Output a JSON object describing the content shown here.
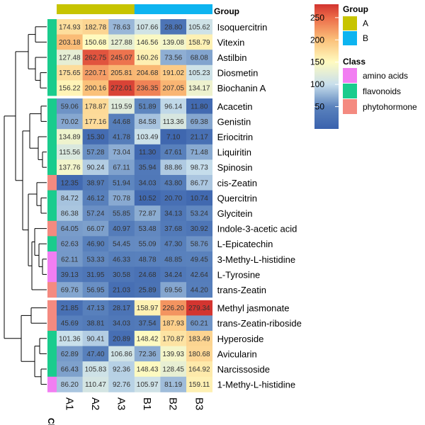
{
  "chart_data": {
    "type": "heatmap",
    "columns": [
      "A1",
      "A2",
      "A3",
      "B1",
      "B2",
      "B3"
    ],
    "column_groups": [
      "A",
      "A",
      "A",
      "B",
      "B",
      "B"
    ],
    "rows": [
      {
        "name": "Isoquercitrin",
        "class": "flavonoids",
        "values": [
          "174.93",
          "182.78",
          "78.63",
          "107.66",
          "28.80",
          "105.62"
        ]
      },
      {
        "name": "Vitexin",
        "class": "flavonoids",
        "values": [
          "203.18",
          "150.68",
          "127.88",
          "146.56",
          "139.08",
          "158.79"
        ]
      },
      {
        "name": "Astilbin",
        "class": "flavonoids",
        "values": [
          "127.48",
          "262.75",
          "245.07",
          "160.26",
          "73.56",
          "68.08"
        ]
      },
      {
        "name": "Diosmetin",
        "class": "flavonoids",
        "values": [
          "175.65",
          "220.71",
          "205.81",
          "204.68",
          "191.02",
          "105.23"
        ]
      },
      {
        "name": "Biochanin A",
        "class": "flavonoids",
        "values": [
          "156.22",
          "200.16",
          "272.01",
          "236.35",
          "207.05",
          "134.17"
        ]
      },
      {
        "name": "Acacetin",
        "class": "flavonoids",
        "values": [
          "59.06",
          "178.87",
          "119.59",
          "51.89",
          "96.14",
          "11.80"
        ]
      },
      {
        "name": "Genistin",
        "class": "flavonoids",
        "values": [
          "70.02",
          "177.16",
          "44.68",
          "84.58",
          "113.36",
          "69.38"
        ]
      },
      {
        "name": "Eriocitrin",
        "class": "flavonoids",
        "values": [
          "134.89",
          "15.30",
          "41.78",
          "103.49",
          "7.10",
          "21.17"
        ]
      },
      {
        "name": "Liquiritin",
        "class": "flavonoids",
        "values": [
          "115.56",
          "57.28",
          "73.04",
          "11.30",
          "47.61",
          "71.48"
        ]
      },
      {
        "name": "Spinosin",
        "class": "flavonoids",
        "values": [
          "137.76",
          "90.24",
          "67.11",
          "35.94",
          "88.86",
          "98.73"
        ]
      },
      {
        "name": "cis-Zeatin",
        "class": "phytohormone",
        "values": [
          "12.35",
          "38.97",
          "51.94",
          "34.03",
          "43.80",
          "86.77"
        ]
      },
      {
        "name": "Quercitrin",
        "class": "flavonoids",
        "values": [
          "84.72",
          "46.12",
          "70.78",
          "10.52",
          "20.70",
          "10.74"
        ]
      },
      {
        "name": "Glycitein",
        "class": "flavonoids",
        "values": [
          "86.38",
          "57.24",
          "55.85",
          "72.87",
          "34.13",
          "53.24"
        ]
      },
      {
        "name": "Indole-3-acetic acid",
        "class": "phytohormone",
        "values": [
          "64.05",
          "66.07",
          "40.97",
          "53.48",
          "37.68",
          "30.92"
        ]
      },
      {
        "name": "L-Epicatechin",
        "class": "flavonoids",
        "values": [
          "62.63",
          "46.90",
          "54.45",
          "55.09",
          "47.30",
          "58.76"
        ]
      },
      {
        "name": "3-Methy-L-histidine",
        "class": "amino acids",
        "values": [
          "62.11",
          "53.33",
          "46.33",
          "48.78",
          "48.85",
          "49.45"
        ]
      },
      {
        "name": "L-Tyrosine",
        "class": "amino acids",
        "values": [
          "39.13",
          "31.95",
          "30.58",
          "24.68",
          "34.24",
          "42.64"
        ]
      },
      {
        "name": "trans-Zeatin",
        "class": "phytohormone",
        "values": [
          "69.76",
          "56.95",
          "21.03",
          "25.89",
          "69.56",
          "44.20"
        ]
      },
      {
        "name": "Methyl jasmonate",
        "class": "phytohormone",
        "values": [
          "21.85",
          "47.13",
          "28.17",
          "158.97",
          "226.20",
          "279.34"
        ]
      },
      {
        "name": "trans-Zeatin-riboside",
        "class": "phytohormone",
        "values": [
          "45.69",
          "38.81",
          "34.03",
          "37.54",
          "187.93",
          "60.21"
        ]
      },
      {
        "name": "Hyperoside",
        "class": "flavonoids",
        "values": [
          "101.36",
          "90.41",
          "20.89",
          "148.42",
          "170.87",
          "183.49"
        ]
      },
      {
        "name": "Avicularin",
        "class": "flavonoids",
        "values": [
          "62.89",
          "47.40",
          "106.86",
          "72.36",
          "139.93",
          "180.68"
        ]
      },
      {
        "name": "Narcissoside",
        "class": "flavonoids",
        "values": [
          "66.43",
          "105.83",
          "92.36",
          "148.43",
          "128.45",
          "164.92"
        ]
      },
      {
        "name": "1-Methy-L-histidine",
        "class": "amino acids",
        "values": [
          "86.20",
          "110.47",
          "92.76",
          "105.97",
          "81.19",
          "159.11"
        ]
      }
    ],
    "row_breaks_after": [
      5,
      18
    ],
    "color_scale": {
      "domain": [
        0,
        50,
        100,
        150,
        200,
        250,
        280
      ],
      "colors": [
        "#3a62ad",
        "#5a82bd",
        "#c8dfec",
        "#fffbc0",
        "#fbc17a",
        "#ec6b49",
        "#d2342f"
      ],
      "ticks": [
        50,
        100,
        150,
        200,
        250
      ]
    },
    "legends": {
      "group_title": "Group",
      "group_items": [
        {
          "label": "A",
          "color": "#c7c400"
        },
        {
          "label": "B",
          "color": "#0db4f0"
        }
      ],
      "class_title": "Class",
      "class_items": [
        {
          "label": "amino acids",
          "color": "#f27ef2"
        },
        {
          "label": "flavonoids",
          "color": "#1acc8d"
        },
        {
          "label": "phytohormone",
          "color": "#f48a80"
        }
      ]
    },
    "side_labels": {
      "group": "Group",
      "class": "Class"
    }
  }
}
